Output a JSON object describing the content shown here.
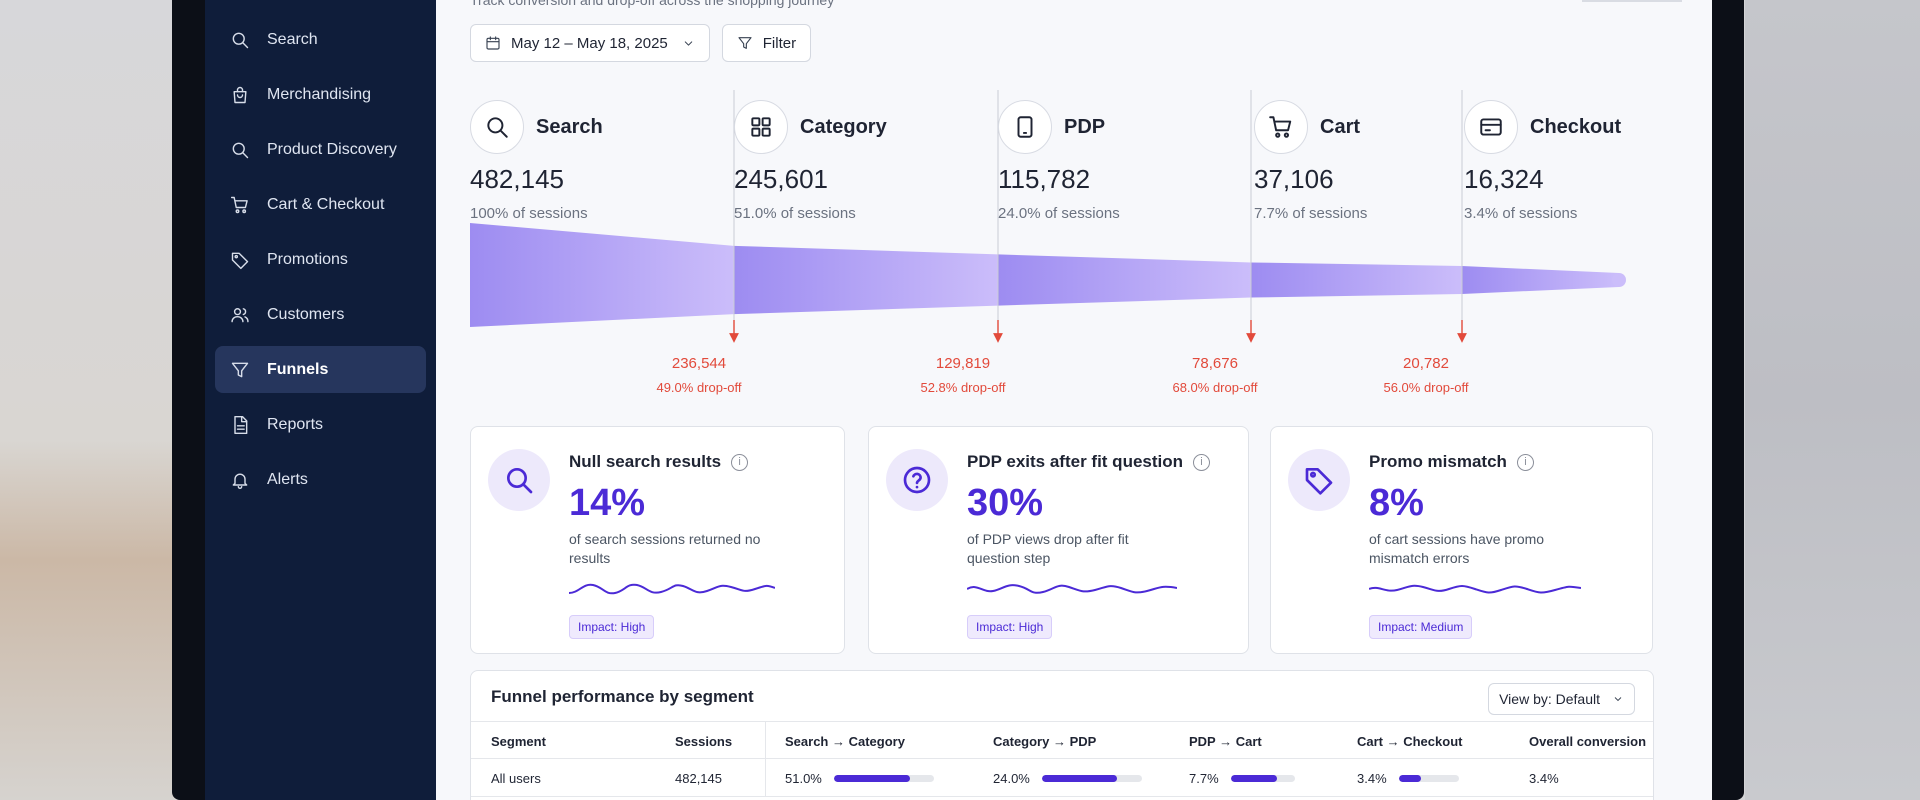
{
  "header": {
    "subtitle": "Track conversion and drop-off across the shopping journey"
  },
  "sidebar": {
    "items": [
      {
        "label": "Search",
        "icon": "search-icon"
      },
      {
        "label": "Merchandising",
        "icon": "shopping-bag-icon"
      },
      {
        "label": "Product Discovery",
        "icon": "search-icon"
      },
      {
        "label": "Cart & Checkout",
        "icon": "cart-icon"
      },
      {
        "label": "Promotions",
        "icon": "tag-icon"
      },
      {
        "label": "Customers",
        "icon": "users-icon"
      },
      {
        "label": "Funnels",
        "icon": "filter-icon",
        "active": true
      },
      {
        "label": "Reports",
        "icon": "document-icon"
      },
      {
        "label": "Alerts",
        "icon": "bell-icon"
      }
    ]
  },
  "toolbar": {
    "date_range": "May 12 – May 18, 2025",
    "filter_label": "Filter"
  },
  "funnel": {
    "stages": [
      {
        "name": "Search",
        "value": "482,145",
        "pct": "100% of sessions",
        "icon": "search-icon",
        "sessions": 482145
      },
      {
        "name": "Category",
        "value": "245,601",
        "pct": "51.0% of sessions",
        "icon": "grid-icon",
        "sessions": 245601
      },
      {
        "name": "PDP",
        "value": "115,782",
        "pct": "24.0% of sessions",
        "icon": "tablet-icon",
        "sessions": 115782
      },
      {
        "name": "Cart",
        "value": "37,106",
        "pct": "7.7% of sessions",
        "icon": "cart-icon",
        "sessions": 37106
      },
      {
        "name": "Checkout",
        "value": "16,324",
        "pct": "3.4% of sessions",
        "icon": "credit-card-icon",
        "sessions": 16324
      }
    ],
    "dropoffs": [
      {
        "value": "236,544",
        "pct": "49.0% drop-off"
      },
      {
        "value": "129,819",
        "pct": "52.8% drop-off"
      },
      {
        "value": "78,676",
        "pct": "68.0% drop-off"
      },
      {
        "value": "20,782",
        "pct": "56.0% drop-off"
      }
    ]
  },
  "insights": [
    {
      "title": "Null search results",
      "big": "14%",
      "desc": "of search sessions returned no results",
      "impact": "Impact: High",
      "icon": "search-icon"
    },
    {
      "title": "PDP exits after fit question",
      "big": "30%",
      "desc": "of PDP views drop after fit question step",
      "impact": "Impact: High",
      "icon": "question-icon"
    },
    {
      "title": "Promo mismatch",
      "big": "8%",
      "desc": "of cart sessions have promo mismatch errors",
      "impact": "Impact: Medium",
      "icon": "tag-icon"
    }
  ],
  "segment_table": {
    "title": "Funnel performance by segment",
    "view_by": "View by: Default",
    "columns": [
      "Segment",
      "Sessions",
      "Search → Category",
      "Category → PDP",
      "PDP → Cart",
      "Cart → Checkout",
      "Overall conversion"
    ],
    "rows": [
      {
        "segment": "All users",
        "sessions": "482,145",
        "s_c": "51.0%",
        "c_p": "24.0%",
        "p_c": "7.7%",
        "c_ch": "3.4%",
        "overall": "3.4%",
        "s_c_v": 0.51,
        "c_p_v": 0.24,
        "p_c_v": 0.077,
        "c_ch_v": 0.034
      }
    ]
  },
  "colors": {
    "accent": "#4b2ad6",
    "sidebar_bg": "#0f1d3a",
    "drop": "#e24a3b",
    "funnel_fill": "#a89af0"
  }
}
